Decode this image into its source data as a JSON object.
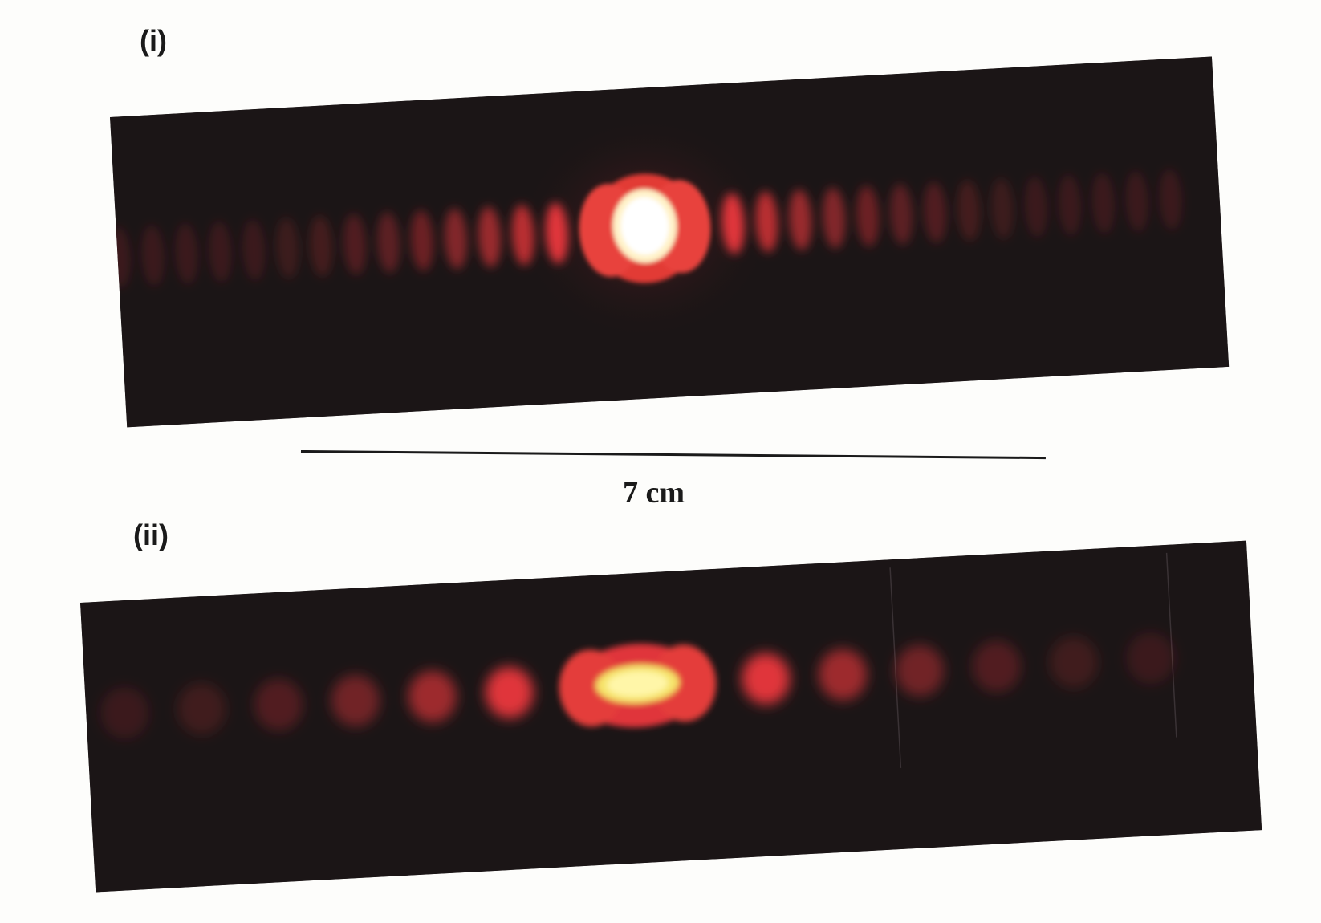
{
  "figure": {
    "panel_i_label": "(i)",
    "panel_ii_label": "(ii)",
    "scale_bar_label": "7 cm"
  },
  "colors": {
    "background": "#1b1516",
    "fringe": "#e0343a",
    "central_core": "#fff4cc",
    "paper": "#fdfdfb"
  },
  "panels": [
    {
      "id": "i",
      "fringe_count_left": 14,
      "fringe_count_right": 14
    },
    {
      "id": "ii",
      "fringe_count_left": 6,
      "fringe_count_right": 6
    }
  ]
}
